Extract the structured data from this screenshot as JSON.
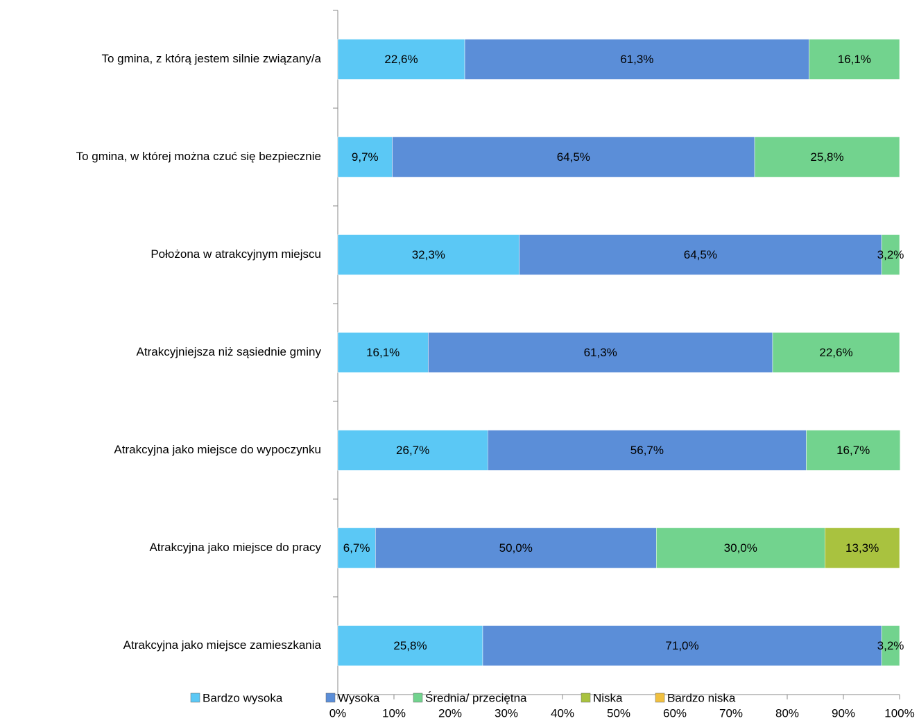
{
  "chart_data": {
    "type": "stacked-bar-horizontal",
    "categories": [
      "To gmina, z którą jestem silnie związany/a",
      "To gmina, w której można czuć się bezpiecznie",
      "Położona w atrakcyjnym miejscu",
      "Atrakcyjniejsza niż sąsiednie gminy",
      "Atrakcyjna jako miejsce do wypoczynku",
      "Atrakcyjna jako miejsce do pracy",
      "Atrakcyjna jako miejsce zamieszkania"
    ],
    "series": [
      {
        "name": "Bardzo wysoka",
        "color": "#5bc8f5",
        "values": [
          22.6,
          9.7,
          32.3,
          16.1,
          26.7,
          6.7,
          25.8
        ],
        "value_labels": [
          "22,6%",
          "9,7%",
          "32,3%",
          "16,1%",
          "26,7%",
          "6,7%",
          "25,8%"
        ]
      },
      {
        "name": "Wysoka",
        "color": "#5b8ed8",
        "values": [
          61.3,
          64.5,
          64.5,
          61.3,
          56.7,
          50.0,
          71.0
        ],
        "value_labels": [
          "61,3%",
          "64,5%",
          "64,5%",
          "61,3%",
          "56,7%",
          "50,0%",
          "71,0%"
        ]
      },
      {
        "name": "Średnia/ przeciętna",
        "color": "#72d38e",
        "values": [
          16.1,
          25.8,
          3.2,
          22.6,
          16.7,
          30.0,
          3.2
        ],
        "value_labels": [
          "16,1%",
          "25,8%",
          "3,2%",
          "22,6%",
          "16,7%",
          "30,0%",
          "3,2%"
        ]
      },
      {
        "name": "Niska",
        "color": "#a9c23f",
        "values": [
          0,
          0,
          0,
          0,
          0,
          13.3,
          0
        ],
        "value_labels": [
          null,
          null,
          null,
          null,
          null,
          "13,3%",
          null
        ]
      },
      {
        "name": "Bardzo niska",
        "color": "#f0c040",
        "values": [
          0,
          0,
          0,
          0,
          0,
          0,
          0
        ]
      }
    ],
    "xlim": [
      0,
      100
    ],
    "xticks": [
      {
        "value": 0,
        "label": "0%"
      },
      {
        "value": 10,
        "label": "10%"
      },
      {
        "value": 20,
        "label": "20%"
      },
      {
        "value": 30,
        "label": "30%"
      },
      {
        "value": 40,
        "label": "40%"
      },
      {
        "value": 50,
        "label": "50%"
      },
      {
        "value": 60,
        "label": "60%"
      },
      {
        "value": 70,
        "label": "70%"
      },
      {
        "value": 80,
        "label": "80%"
      },
      {
        "value": 90,
        "label": "90%"
      },
      {
        "value": 100,
        "label": "100%"
      }
    ],
    "legend": "bottom"
  }
}
